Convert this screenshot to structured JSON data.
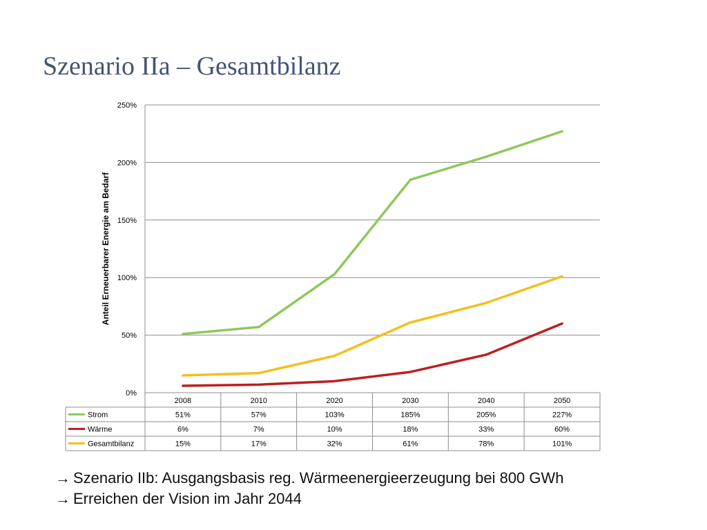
{
  "slide": {
    "title": "Szenario IIa – Gesamtbilanz",
    "bullets": [
      "Szenario IIb: Ausgangsbasis reg. Wärmeenergieerzeugung bei 800 GWh",
      "Erreichen der Vision im Jahr 2044"
    ],
    "bullet_icon": "arrow-right-icon"
  },
  "chart_data": {
    "type": "line",
    "title": "",
    "xlabel": "",
    "ylabel": "Anteil Erneuerbarer Energie am Bedarf",
    "categories": [
      "2008",
      "2010",
      "2020",
      "2030",
      "2040",
      "2050"
    ],
    "ylim": [
      0,
      250
    ],
    "yticks": [
      "0%",
      "50%",
      "100%",
      "150%",
      "200%",
      "250%"
    ],
    "grid": true,
    "legend": "data-table",
    "series": [
      {
        "name": "Strom",
        "color": "#8DC85B",
        "values": [
          51,
          57,
          103,
          185,
          205,
          227
        ],
        "labels": [
          "51%",
          "57%",
          "103%",
          "185%",
          "205%",
          "227%"
        ]
      },
      {
        "name": "Wärme",
        "color": "#BE1E1E",
        "values": [
          6,
          7,
          10,
          18,
          33,
          60
        ],
        "labels": [
          "6%",
          "7%",
          "10%",
          "18%",
          "33%",
          "60%"
        ]
      },
      {
        "name": "Gesamtbilanz",
        "color": "#F5BE1E",
        "values": [
          15,
          17,
          32,
          61,
          78,
          101
        ],
        "labels": [
          "15%",
          "17%",
          "32%",
          "61%",
          "78%",
          "101%"
        ]
      }
    ]
  }
}
